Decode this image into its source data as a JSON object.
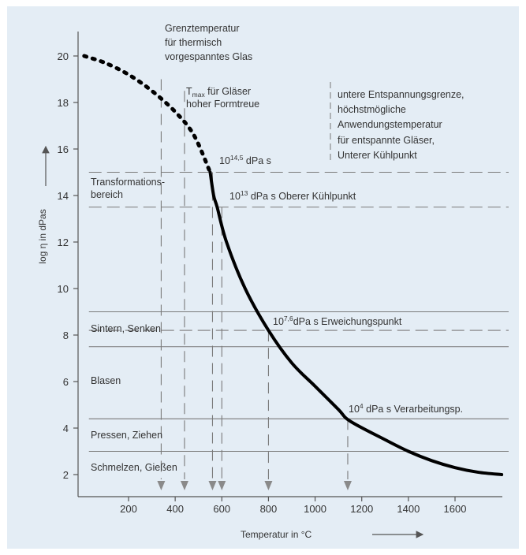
{
  "chart_data": {
    "type": "line",
    "xlabel": "Temperatur in °C",
    "ylabel": "log η in dPas",
    "xlim": [
      0,
      1800
    ],
    "ylim": [
      1.4,
      20.6
    ],
    "xticks": [
      200,
      400,
      600,
      800,
      1000,
      1200,
      1400,
      1600
    ],
    "yticks": [
      2,
      4,
      6,
      8,
      10,
      12,
      14,
      16,
      18,
      20
    ],
    "grid": false,
    "series": [
      {
        "style": "dotted",
        "points": [
          [
            10,
            20.0
          ],
          [
            100,
            19.7
          ],
          [
            200,
            19.2
          ],
          [
            300,
            18.5
          ],
          [
            400,
            17.6
          ],
          [
            480,
            16.6
          ],
          [
            550,
            15.0
          ]
        ]
      },
      {
        "style": "solid",
        "points": [
          [
            550,
            15.0
          ],
          [
            565,
            14.0
          ],
          [
            580,
            13.5
          ],
          [
            620,
            12.0
          ],
          [
            700,
            10.0
          ],
          [
            800,
            8.2
          ],
          [
            900,
            6.8
          ],
          [
            1000,
            5.8
          ],
          [
            1100,
            4.8
          ],
          [
            1150,
            4.3
          ],
          [
            1300,
            3.5
          ],
          [
            1400,
            3.0
          ],
          [
            1500,
            2.6
          ],
          [
            1600,
            2.3
          ],
          [
            1700,
            2.1
          ],
          [
            1800,
            2.0
          ]
        ]
      }
    ],
    "reference_lines": [
      {
        "y": 15.0,
        "style": "dashed",
        "x_start": 30
      },
      {
        "y": 13.5,
        "style": "dashed",
        "x_start": 30
      },
      {
        "y": 9.0,
        "style": "solid",
        "x_start": 30
      },
      {
        "y": 8.2,
        "style": "dashed",
        "x_start": 30
      },
      {
        "y": 7.5,
        "style": "solid",
        "x_start": 30
      },
      {
        "y": 4.4,
        "style": "solid",
        "x_start": 30
      },
      {
        "y": 3.0,
        "style": "solid",
        "x_start": 30
      }
    ],
    "vertical_markers": [
      {
        "x": 340,
        "y_top": 19.0
      },
      {
        "x": 440,
        "y_top": 18.5
      },
      {
        "x": 560,
        "y_top": 15.0
      },
      {
        "x": 600,
        "y_top": 13.5
      },
      {
        "x": 800,
        "y_top": 8.2
      },
      {
        "x": 1140,
        "y_top": 4.4
      }
    ],
    "annotations": [
      {
        "lines": [
          "Grenztemperatur",
          "für thermisch",
          "vorgespanntes Glas"
        ]
      },
      {
        "main": "T",
        "sub": "max",
        "rest": " für Gläser",
        "line2": "hoher Formtreue"
      },
      {
        "lines": [
          "untere Entspannungsgrenze,",
          "höchstmögliche",
          "Anwendungstemperatur",
          "für entspannte Gläser,",
          "Unterer Kühlpunkt"
        ]
      },
      {
        "base": "10",
        "exp": "14,5",
        "rest": " dPa s"
      },
      {
        "base": "10",
        "exp": "13",
        "rest": " dPa s Oberer Kühlpunkt"
      },
      {
        "base": "10",
        "exp": "7,6",
        "rest": "dPa s Erweichungspunkt"
      },
      {
        "base": "10",
        "exp": "4",
        "rest": " dPa s Verarbeitungsp."
      }
    ],
    "regions": [
      {
        "lines": [
          "Transformations-",
          "bereich"
        ]
      },
      {
        "lines": [
          "Sintern, Senken"
        ]
      },
      {
        "lines": [
          "Blasen"
        ]
      },
      {
        "lines": [
          "Pressen, Ziehen"
        ]
      },
      {
        "lines": [
          "Schmelzen, Gießen"
        ]
      }
    ]
  },
  "colors": {
    "panel": "#e4edf5",
    "axis": "#555555",
    "curve": "#000000",
    "reference": "#777777",
    "text": "#333333"
  }
}
